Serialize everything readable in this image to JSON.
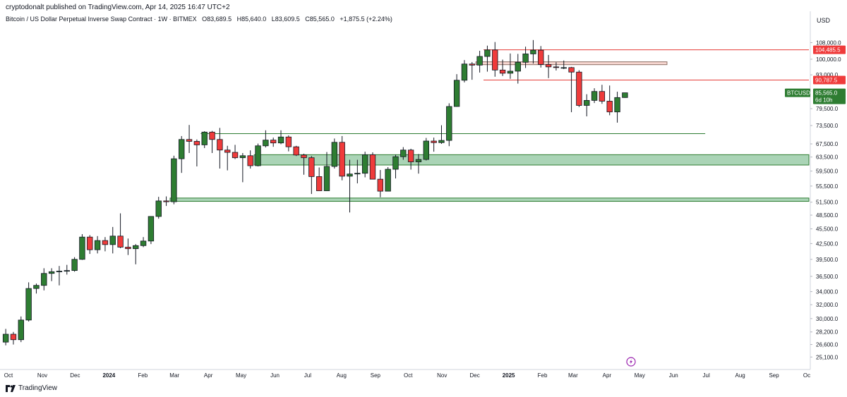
{
  "header": {
    "published": "cryptodonalt published on TradingView.com, Apr 14, 2025 16:47 UTC+2",
    "symbol_title": "Bitcoin / US Dollar Perpetual Inverse Swap Contract · 1W · BITMEX",
    "ohlc": {
      "open": "O83,689.5",
      "high": "H85,640.0",
      "low": "L83,609.5",
      "close": "C85,565.0",
      "change": "+1,875.5 (+2.24%)"
    }
  },
  "footer": {
    "brand": "TradingView"
  },
  "colors": {
    "up": "#2e7d32",
    "down": "#ef3b3b",
    "zone_green": "#6fbf8a",
    "zone_red": "#e53935",
    "axis": "#131722"
  },
  "chart_data": {
    "type": "candlestick",
    "title": "",
    "currency_label": "USD",
    "y_scale": "log",
    "ylim": [
      24000,
      117000
    ],
    "y_ticks": [
      "108,000.0",
      "100,000.0",
      "93,000.0",
      "79,500.0",
      "73,500.0",
      "67,500.0",
      "63,500.0",
      "59,500.0",
      "55,500.0",
      "51,500.0",
      "48,500.0",
      "45,500.0",
      "42,500.0",
      "39,500.0",
      "36,500.0",
      "34,000.0",
      "32,000.0",
      "30,000.0",
      "28,200.0",
      "26,600.0",
      "25,100.0"
    ],
    "x_ticks": [
      {
        "label": "Oct",
        "date": "2023-10-01"
      },
      {
        "label": "Nov",
        "date": "2023-11-01"
      },
      {
        "label": "Dec",
        "date": "2023-12-01"
      },
      {
        "label": "2024",
        "date": "2024-01-01",
        "bold": true
      },
      {
        "label": "Feb",
        "date": "2024-02-01"
      },
      {
        "label": "Mar",
        "date": "2024-03-01"
      },
      {
        "label": "Apr",
        "date": "2024-04-01"
      },
      {
        "label": "May",
        "date": "2024-05-01"
      },
      {
        "label": "Jun",
        "date": "2024-06-01"
      },
      {
        "label": "Jul",
        "date": "2024-07-01"
      },
      {
        "label": "Aug",
        "date": "2024-08-01"
      },
      {
        "label": "Sep",
        "date": "2024-09-01"
      },
      {
        "label": "Oct",
        "date": "2024-10-01"
      },
      {
        "label": "Nov",
        "date": "2024-11-01"
      },
      {
        "label": "Dec",
        "date": "2024-12-01"
      },
      {
        "label": "2025",
        "date": "2025-01-01",
        "bold": true
      },
      {
        "label": "Feb",
        "date": "2025-02-01"
      },
      {
        "label": "Mar",
        "date": "2025-03-01"
      },
      {
        "label": "Apr",
        "date": "2025-04-01"
      },
      {
        "label": "May",
        "date": "2025-05-01"
      },
      {
        "label": "Jun",
        "date": "2025-06-01"
      },
      {
        "label": "Jul",
        "date": "2025-07-01"
      },
      {
        "label": "Aug",
        "date": "2025-08-01"
      },
      {
        "label": "Sep",
        "date": "2025-09-01"
      },
      {
        "label": "Oc",
        "date": "2025-10-01"
      }
    ],
    "price_labels": [
      {
        "text": "104,485.5",
        "value": 104485.5,
        "color": "#ef3b3b"
      },
      {
        "text": "90,787.5",
        "value": 90787.5,
        "color": "#ef3b3b"
      },
      {
        "text": "BTCUSD.P",
        "value": 85565,
        "color": "#2e7d32"
      },
      {
        "text": "85,565.0",
        "value": 85565,
        "color": "#2e7d32"
      },
      {
        "text": "6d 10h",
        "value": 85565,
        "color": "#2e7d32"
      }
    ],
    "zones": [
      {
        "kind": "box",
        "color": "red",
        "from": "2024-12-02",
        "to": "2025-05-26",
        "low": 97500,
        "high": 98800
      },
      {
        "kind": "box",
        "color": "green",
        "from": "2024-05-13",
        "to": "2025-10-27",
        "low": 61200,
        "high": 64200
      },
      {
        "kind": "box",
        "color": "green",
        "from": "2024-02-26",
        "to": "2025-10-27",
        "low": 51700,
        "high": 52500
      },
      {
        "kind": "line",
        "color": "red",
        "from": "2024-12-09",
        "to": "2025-10-27",
        "value": 104485.5
      },
      {
        "kind": "line",
        "color": "red",
        "from": "2024-12-09",
        "to": "2025-10-27",
        "value": 90787.5
      },
      {
        "kind": "line",
        "color": "green",
        "from": "2024-03-25",
        "to": "2025-06-30",
        "value": 70800
      }
    ],
    "candles": [
      {
        "date": "2023-09-25",
        "o": 26900,
        "h": 28600,
        "l": 26500,
        "c": 27900
      },
      {
        "date": "2023-10-02",
        "o": 27900,
        "h": 28200,
        "l": 26600,
        "c": 27200
      },
      {
        "date": "2023-10-09",
        "o": 27200,
        "h": 30300,
        "l": 26900,
        "c": 29800
      },
      {
        "date": "2023-10-16",
        "o": 29800,
        "h": 35500,
        "l": 29600,
        "c": 34500
      },
      {
        "date": "2023-10-23",
        "o": 34500,
        "h": 35300,
        "l": 33700,
        "c": 35000
      },
      {
        "date": "2023-10-30",
        "o": 35000,
        "h": 37900,
        "l": 34200,
        "c": 37000
      },
      {
        "date": "2023-11-06",
        "o": 37000,
        "h": 37900,
        "l": 35700,
        "c": 37300
      },
      {
        "date": "2023-11-13",
        "o": 37300,
        "h": 38300,
        "l": 35000,
        "c": 37400
      },
      {
        "date": "2023-11-20",
        "o": 37400,
        "h": 38500,
        "l": 36800,
        "c": 37500
      },
      {
        "date": "2023-11-27",
        "o": 37500,
        "h": 39900,
        "l": 37300,
        "c": 39500
      },
      {
        "date": "2023-12-04",
        "o": 39500,
        "h": 44400,
        "l": 39400,
        "c": 43800
      },
      {
        "date": "2023-12-11",
        "o": 43800,
        "h": 44200,
        "l": 40500,
        "c": 41300
      },
      {
        "date": "2023-12-18",
        "o": 41300,
        "h": 44000,
        "l": 40600,
        "c": 43100
      },
      {
        "date": "2023-12-25",
        "o": 43100,
        "h": 43800,
        "l": 41000,
        "c": 42300
      },
      {
        "date": "2024-01-01",
        "o": 42300,
        "h": 45900,
        "l": 40600,
        "c": 44000
      },
      {
        "date": "2024-01-08",
        "o": 44000,
        "h": 48900,
        "l": 41600,
        "c": 41800
      },
      {
        "date": "2024-01-15",
        "o": 41800,
        "h": 43500,
        "l": 40300,
        "c": 41500
      },
      {
        "date": "2024-01-22",
        "o": 41500,
        "h": 42400,
        "l": 38600,
        "c": 42100
      },
      {
        "date": "2024-01-29",
        "o": 42100,
        "h": 43800,
        "l": 41800,
        "c": 43000
      },
      {
        "date": "2024-02-05",
        "o": 43000,
        "h": 48200,
        "l": 42400,
        "c": 48200
      },
      {
        "date": "2024-02-12",
        "o": 48200,
        "h": 52800,
        "l": 47700,
        "c": 51800
      },
      {
        "date": "2024-02-19",
        "o": 51800,
        "h": 52900,
        "l": 50600,
        "c": 51600
      },
      {
        "date": "2024-02-26",
        "o": 51600,
        "h": 63900,
        "l": 51000,
        "c": 63000
      },
      {
        "date": "2024-03-04",
        "o": 63000,
        "h": 70000,
        "l": 59000,
        "c": 68900
      },
      {
        "date": "2024-03-11",
        "o": 68900,
        "h": 73700,
        "l": 64700,
        "c": 68300
      },
      {
        "date": "2024-03-18",
        "o": 68300,
        "h": 68900,
        "l": 60800,
        "c": 67200
      },
      {
        "date": "2024-03-25",
        "o": 67200,
        "h": 71600,
        "l": 66200,
        "c": 71300
      },
      {
        "date": "2024-04-01",
        "o": 71300,
        "h": 71700,
        "l": 64700,
        "c": 68900
      },
      {
        "date": "2024-04-08",
        "o": 68900,
        "h": 72700,
        "l": 60200,
        "c": 65600
      },
      {
        "date": "2024-04-15",
        "o": 65600,
        "h": 66900,
        "l": 59700,
        "c": 64900
      },
      {
        "date": "2024-04-22",
        "o": 64900,
        "h": 67200,
        "l": 62900,
        "c": 63300
      },
      {
        "date": "2024-04-29",
        "o": 63300,
        "h": 64700,
        "l": 56500,
        "c": 63900
      },
      {
        "date": "2024-05-06",
        "o": 63900,
        "h": 65500,
        "l": 60200,
        "c": 61000
      },
      {
        "date": "2024-05-13",
        "o": 61000,
        "h": 67600,
        "l": 60800,
        "c": 66900
      },
      {
        "date": "2024-05-20",
        "o": 66900,
        "h": 71900,
        "l": 66400,
        "c": 68700
      },
      {
        "date": "2024-05-27",
        "o": 68700,
        "h": 69500,
        "l": 66600,
        "c": 67800
      },
      {
        "date": "2024-06-03",
        "o": 67800,
        "h": 71900,
        "l": 67400,
        "c": 69700
      },
      {
        "date": "2024-06-10",
        "o": 69700,
        "h": 70200,
        "l": 65200,
        "c": 66600
      },
      {
        "date": "2024-06-17",
        "o": 66600,
        "h": 66900,
        "l": 63800,
        "c": 64100
      },
      {
        "date": "2024-06-24",
        "o": 64100,
        "h": 64500,
        "l": 58500,
        "c": 63300
      },
      {
        "date": "2024-07-01",
        "o": 63300,
        "h": 63800,
        "l": 53500,
        "c": 58000
      },
      {
        "date": "2024-07-08",
        "o": 58000,
        "h": 60500,
        "l": 54300,
        "c": 54300
      },
      {
        "date": "2024-07-15",
        "o": 54300,
        "h": 65000,
        "l": 54300,
        "c": 60800
      },
      {
        "date": "2024-07-22",
        "o": 60800,
        "h": 69200,
        "l": 60200,
        "c": 68000
      },
      {
        "date": "2024-07-29",
        "o": 68000,
        "h": 70000,
        "l": 57000,
        "c": 58100
      },
      {
        "date": "2024-08-05",
        "o": 58100,
        "h": 62700,
        "l": 49100,
        "c": 58700
      },
      {
        "date": "2024-08-12",
        "o": 58700,
        "h": 62700,
        "l": 56200,
        "c": 58900
      },
      {
        "date": "2024-08-19",
        "o": 58900,
        "h": 65100,
        "l": 57800,
        "c": 64200
      },
      {
        "date": "2024-08-26",
        "o": 64200,
        "h": 64900,
        "l": 57300,
        "c": 57300
      },
      {
        "date": "2024-09-02",
        "o": 57300,
        "h": 59800,
        "l": 52700,
        "c": 54200
      },
      {
        "date": "2024-09-09",
        "o": 54200,
        "h": 60600,
        "l": 54200,
        "c": 60000
      },
      {
        "date": "2024-09-16",
        "o": 60000,
        "h": 64200,
        "l": 57500,
        "c": 63600
      },
      {
        "date": "2024-09-23",
        "o": 63600,
        "h": 66500,
        "l": 62700,
        "c": 65600
      },
      {
        "date": "2024-09-30",
        "o": 65600,
        "h": 66000,
        "l": 59900,
        "c": 62100
      },
      {
        "date": "2024-10-07",
        "o": 62100,
        "h": 64400,
        "l": 58800,
        "c": 62800
      },
      {
        "date": "2024-10-14",
        "o": 62800,
        "h": 69400,
        "l": 62500,
        "c": 68400
      },
      {
        "date": "2024-10-21",
        "o": 68400,
        "h": 69500,
        "l": 65100,
        "c": 67900
      },
      {
        "date": "2024-10-28",
        "o": 67900,
        "h": 73600,
        "l": 67500,
        "c": 68600
      },
      {
        "date": "2024-11-04",
        "o": 68600,
        "h": 81500,
        "l": 66800,
        "c": 80300
      },
      {
        "date": "2024-11-11",
        "o": 80300,
        "h": 93300,
        "l": 80200,
        "c": 90700
      },
      {
        "date": "2024-11-18",
        "o": 90700,
        "h": 99600,
        "l": 89800,
        "c": 97800
      },
      {
        "date": "2024-11-25",
        "o": 97800,
        "h": 98700,
        "l": 90900,
        "c": 97300
      },
      {
        "date": "2024-12-02",
        "o": 97300,
        "h": 104000,
        "l": 94000,
        "c": 101300
      },
      {
        "date": "2024-12-09",
        "o": 101300,
        "h": 106500,
        "l": 94400,
        "c": 104400
      },
      {
        "date": "2024-12-16",
        "o": 104400,
        "h": 108300,
        "l": 92200,
        "c": 95100
      },
      {
        "date": "2024-12-23",
        "o": 95100,
        "h": 99800,
        "l": 92500,
        "c": 93700
      },
      {
        "date": "2024-12-30",
        "o": 93700,
        "h": 102700,
        "l": 91300,
        "c": 94600
      },
      {
        "date": "2025-01-06",
        "o": 94600,
        "h": 102500,
        "l": 89300,
        "c": 98600
      },
      {
        "date": "2025-01-13",
        "o": 98600,
        "h": 106000,
        "l": 96000,
        "c": 102500
      },
      {
        "date": "2025-01-20",
        "o": 102500,
        "h": 109300,
        "l": 98000,
        "c": 104300
      },
      {
        "date": "2025-01-27",
        "o": 104300,
        "h": 106300,
        "l": 96200,
        "c": 97600
      },
      {
        "date": "2025-02-03",
        "o": 97600,
        "h": 102000,
        "l": 91600,
        "c": 96500
      },
      {
        "date": "2025-02-10",
        "o": 96500,
        "h": 98600,
        "l": 94900,
        "c": 96200
      },
      {
        "date": "2025-02-17",
        "o": 96200,
        "h": 99400,
        "l": 95500,
        "c": 96200
      },
      {
        "date": "2025-02-24",
        "o": 96200,
        "h": 96500,
        "l": 78200,
        "c": 94200
      },
      {
        "date": "2025-03-03",
        "o": 94200,
        "h": 95000,
        "l": 80100,
        "c": 80700
      },
      {
        "date": "2025-03-10",
        "o": 80700,
        "h": 85000,
        "l": 76700,
        "c": 82600
      },
      {
        "date": "2025-03-17",
        "o": 82600,
        "h": 87400,
        "l": 81600,
        "c": 86100
      },
      {
        "date": "2025-03-24",
        "o": 86100,
        "h": 88800,
        "l": 81300,
        "c": 82300
      },
      {
        "date": "2025-03-31",
        "o": 82300,
        "h": 88500,
        "l": 77100,
        "c": 78300
      },
      {
        "date": "2025-04-07",
        "o": 78300,
        "h": 86000,
        "l": 74500,
        "c": 83700
      },
      {
        "date": "2025-04-14",
        "o": 83700,
        "h": 85600,
        "l": 83600,
        "c": 85565
      }
    ]
  }
}
